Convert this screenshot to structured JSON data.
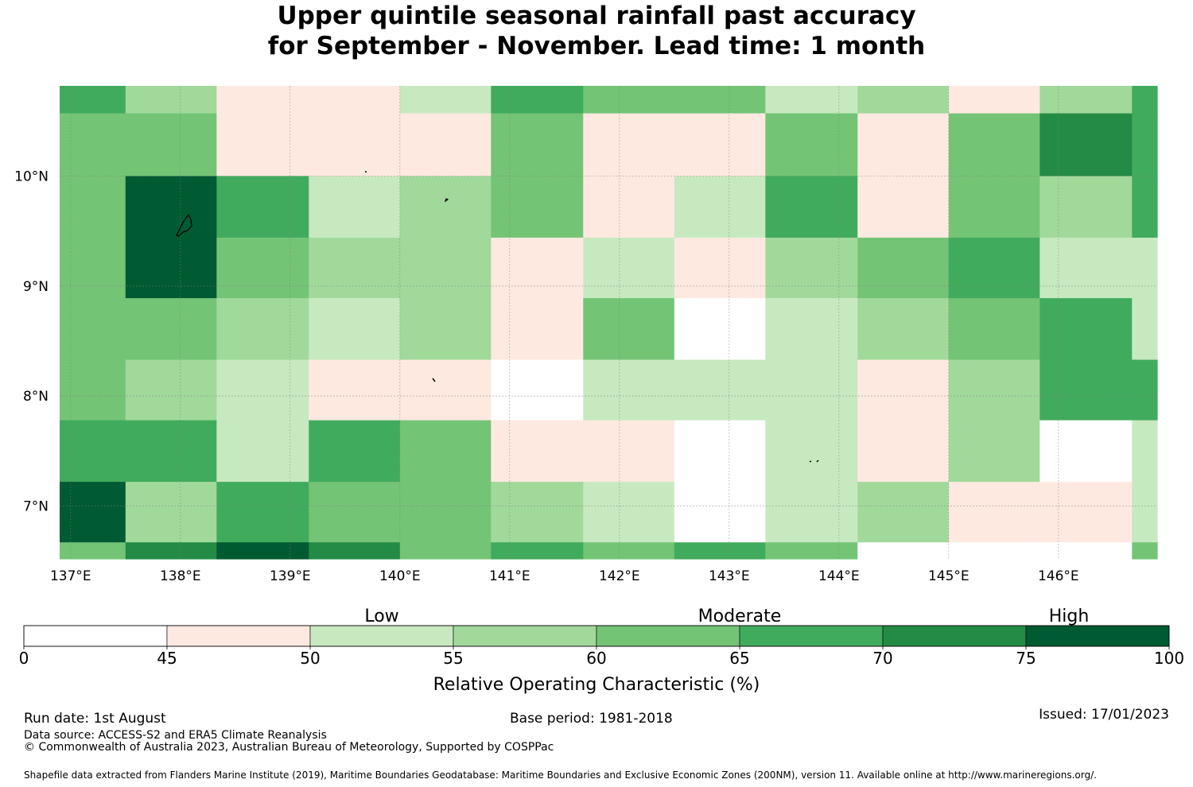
{
  "title": {
    "line1": "Upper quintile seasonal rainfall past accuracy",
    "line2": "for September - November. Lead time: 1 month"
  },
  "chart_data": {
    "type": "heatmap",
    "x_ticks": [
      {
        "lon": 137,
        "label": "137°E"
      },
      {
        "lon": 138,
        "label": "138°E"
      },
      {
        "lon": 139,
        "label": "139°E"
      },
      {
        "lon": 140,
        "label": "140°E"
      },
      {
        "lon": 141,
        "label": "141°E"
      },
      {
        "lon": 142,
        "label": "142°E"
      },
      {
        "lon": 143,
        "label": "143°E"
      },
      {
        "lon": 144,
        "label": "144°E"
      },
      {
        "lon": 145,
        "label": "145°E"
      },
      {
        "lon": 146,
        "label": "146°E"
      }
    ],
    "y_ticks": [
      {
        "lat": 10,
        "label": "10°N"
      },
      {
        "lat": 9,
        "label": "9°N"
      },
      {
        "lat": 8,
        "label": "8°N"
      },
      {
        "lat": 7,
        "label": "7°N"
      }
    ],
    "xlim": [
      136.9,
      146.9
    ],
    "ylim": [
      6.52,
      10.82
    ],
    "lon_edges": [
      136.9,
      137.5,
      138.33,
      139.17,
      140.0,
      140.83,
      141.67,
      142.5,
      143.33,
      144.17,
      145.0,
      145.83,
      146.67,
      146.9
    ],
    "lat_edges": [
      10.82,
      10.57,
      10.0,
      9.44,
      8.89,
      8.33,
      7.78,
      7.22,
      6.67,
      6.52
    ],
    "classes": [
      {
        "min": 0,
        "max": 45,
        "color": "#ffffff"
      },
      {
        "min": 45,
        "max": 50,
        "color": "#fee9e0"
      },
      {
        "min": 50,
        "max": 55,
        "color": "#c7e9c0"
      },
      {
        "min": 55,
        "max": 60,
        "color": "#a1d99b"
      },
      {
        "min": 60,
        "max": 65,
        "color": "#74c476"
      },
      {
        "min": 65,
        "max": 70,
        "color": "#41ab5d"
      },
      {
        "min": 70,
        "max": 75,
        "color": "#238b45"
      },
      {
        "min": 75,
        "max": 100,
        "color": "#005a32"
      }
    ],
    "roc_class_grid": [
      [
        5,
        3,
        1,
        1,
        2,
        5,
        4,
        4,
        2,
        3,
        1,
        3,
        5
      ],
      [
        4,
        4,
        1,
        1,
        1,
        4,
        1,
        1,
        4,
        1,
        4,
        6,
        5
      ],
      [
        4,
        7,
        5,
        2,
        3,
        4,
        1,
        2,
        5,
        1,
        4,
        3,
        5
      ],
      [
        4,
        7,
        4,
        3,
        3,
        1,
        2,
        1,
        3,
        4,
        5,
        2,
        2
      ],
      [
        4,
        4,
        3,
        2,
        3,
        1,
        4,
        0,
        2,
        3,
        4,
        5,
        2
      ],
      [
        4,
        3,
        2,
        1,
        1,
        0,
        2,
        2,
        2,
        1,
        3,
        5,
        5
      ],
      [
        5,
        5,
        2,
        5,
        4,
        1,
        1,
        0,
        2,
        1,
        3,
        0,
        2
      ],
      [
        7,
        3,
        5,
        4,
        4,
        3,
        2,
        0,
        2,
        3,
        1,
        1,
        2
      ],
      [
        4,
        6,
        7,
        6,
        4,
        5,
        4,
        5,
        4,
        0,
        0,
        0,
        4
      ]
    ],
    "colorbar": {
      "label": "Relative Operating Characteristic (%)",
      "boundaries": [
        0,
        45,
        50,
        55,
        60,
        65,
        70,
        75,
        100
      ],
      "tick_labels": [
        "0",
        "45",
        "50",
        "55",
        "60",
        "65",
        "70",
        "75",
        "100"
      ],
      "category_labels": [
        {
          "label": "Low",
          "at": 52.5
        },
        {
          "label": "Moderate",
          "at": 65
        },
        {
          "label": "High",
          "at": 82.5
        }
      ]
    }
  },
  "footer": {
    "run_date": "Run date: 1st August",
    "base_period": "Base period: 1981-2018",
    "issued": "Issued: 17/01/2023",
    "data_source": "Data source: ACCESS-S2 and ERA5 Climate Reanalysis",
    "copyright": "© Commonwealth of Australia 2023, Australian Bureau of Meteorology, Supported by COSPPac",
    "shapefile_note": "Shapefile data extracted from Flanders Marine Institute (2019), Maritime Boundaries Geodatabase: Maritime Boundaries and Exclusive Economic Zones (200NM), version 11. Available online at http://www.marineregions.org/."
  }
}
